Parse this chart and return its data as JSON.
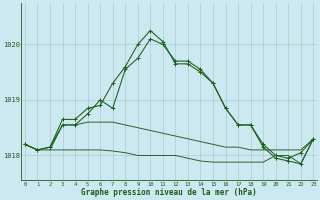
{
  "title": "Graphe pression niveau de la mer (hPa)",
  "background_color": "#cce8f0",
  "grid_color": "#aacccc",
  "line_color": "#1a5c1a",
  "x_ticks": [
    0,
    1,
    2,
    3,
    4,
    5,
    6,
    7,
    8,
    9,
    10,
    11,
    12,
    13,
    14,
    15,
    16,
    17,
    18,
    19,
    20,
    21,
    22,
    23
  ],
  "y_ticks": [
    1018,
    1019,
    1020
  ],
  "ylim": [
    1017.55,
    1020.75
  ],
  "xlim": [
    -0.3,
    23.3
  ],
  "series1_x": [
    0,
    1,
    2,
    3,
    4,
    5,
    6,
    7,
    8,
    9,
    10,
    11,
    12,
    13,
    14,
    15,
    16,
    17,
    18,
    19,
    20,
    21,
    22,
    23
  ],
  "series1_y": [
    1018.2,
    1018.1,
    1018.15,
    1018.65,
    1018.65,
    1018.85,
    1018.9,
    1019.3,
    1019.6,
    1020.0,
    1020.25,
    1020.05,
    1019.65,
    1019.65,
    1019.5,
    1019.3,
    1018.85,
    1018.55,
    1018.55,
    1018.2,
    1018.0,
    1017.95,
    1018.05,
    1018.3
  ],
  "series2_x": [
    0,
    1,
    2,
    3,
    4,
    5,
    6,
    7,
    8,
    9,
    10,
    11,
    12,
    13,
    14,
    15,
    16,
    17,
    18,
    19,
    20,
    21,
    22,
    23
  ],
  "series2_y": [
    1018.2,
    1018.1,
    1018.15,
    1018.55,
    1018.55,
    1018.75,
    1019.0,
    1018.85,
    1019.55,
    1019.75,
    1020.1,
    1020.0,
    1019.7,
    1019.7,
    1019.55,
    1019.3,
    1018.85,
    1018.55,
    1018.55,
    1018.15,
    1017.95,
    1017.9,
    1017.85,
    1018.3
  ],
  "series3_x": [
    0,
    1,
    2,
    3,
    4,
    5,
    6,
    7,
    8,
    9,
    10,
    11,
    12,
    13,
    14,
    15,
    16,
    17,
    18,
    19,
    20,
    21,
    22,
    23
  ],
  "series3_y": [
    1018.2,
    1018.1,
    1018.1,
    1018.55,
    1018.55,
    1018.6,
    1018.6,
    1018.6,
    1018.55,
    1018.5,
    1018.45,
    1018.4,
    1018.35,
    1018.3,
    1018.25,
    1018.2,
    1018.15,
    1018.15,
    1018.1,
    1018.1,
    1018.1,
    1018.1,
    1018.1,
    1018.3
  ],
  "series4_x": [
    2,
    3,
    4,
    5,
    6,
    7,
    8,
    9,
    10,
    11,
    12,
    13,
    14,
    15,
    16,
    17,
    18,
    19,
    20,
    21,
    22,
    23
  ],
  "series4_y": [
    1018.1,
    1018.1,
    1018.1,
    1018.1,
    1018.1,
    1018.08,
    1018.05,
    1018.0,
    1018.0,
    1018.0,
    1018.0,
    1017.95,
    1017.9,
    1017.88,
    1017.88,
    1017.88,
    1017.88,
    1017.88,
    1018.0,
    1018.0,
    1017.85,
    1018.3
  ]
}
